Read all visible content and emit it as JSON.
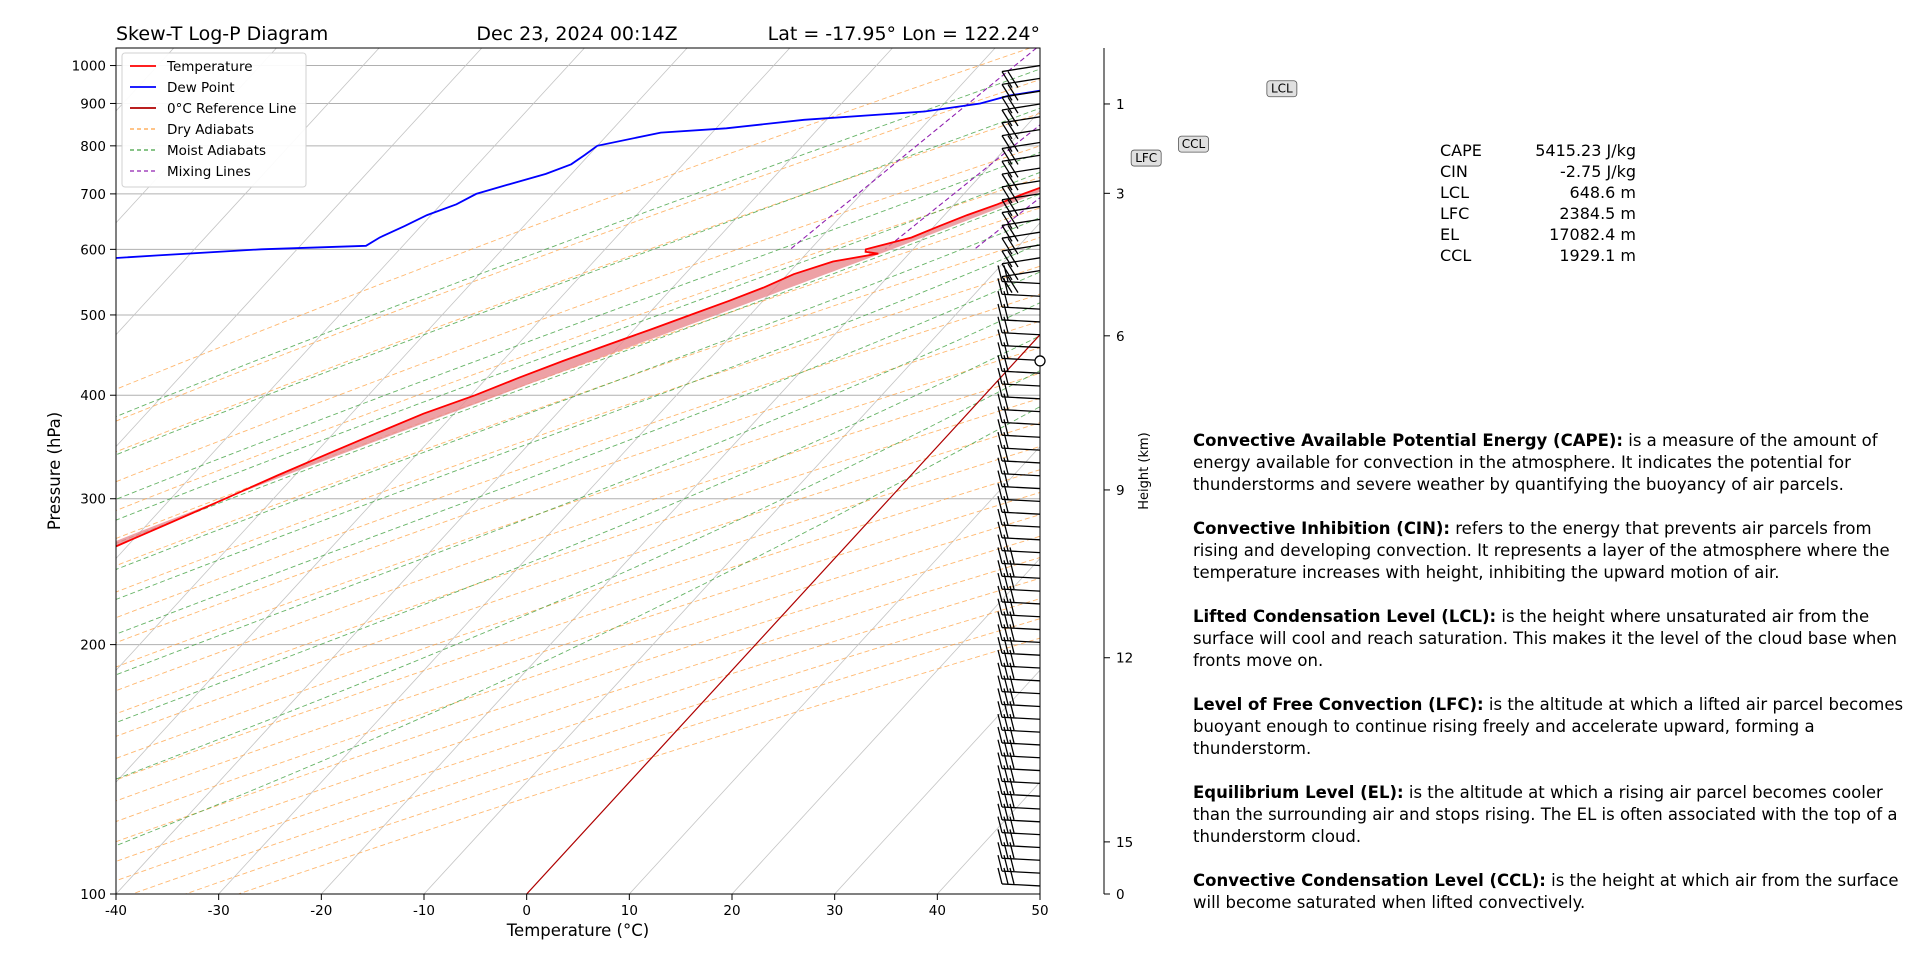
{
  "header": {
    "title": "Skew-T Log-P Diagram",
    "time": "Dec 23, 2024 00:14Z",
    "location": "Lat = -17.95° Lon = 122.24°"
  },
  "chart_data": {
    "type": "skewt",
    "xlabel": "Temperature (°C)",
    "ylabel": "Pressure (hPa)",
    "y2label": "Height (km)",
    "xlim": [
      -40,
      50
    ],
    "ylim_hpa": [
      1050,
      100
    ],
    "x_ticks": [
      -40,
      -30,
      -20,
      -10,
      0,
      10,
      20,
      30,
      40,
      50
    ],
    "y_ticks": [
      1000,
      900,
      800,
      700,
      600,
      500,
      400,
      300,
      200,
      100
    ],
    "height_ticks_km": [
      0,
      1,
      3,
      6,
      9,
      12,
      15
    ],
    "y_scale": "log",
    "grid": true,
    "legend_position": "top-left",
    "legend": [
      {
        "label": "Temperature",
        "color": "#ff0000",
        "style": "solid"
      },
      {
        "label": "Dew Point",
        "color": "#0000ff",
        "style": "solid"
      },
      {
        "label": "0°C Reference Line",
        "color": "#b00000",
        "style": "solid"
      },
      {
        "label": "Dry Adiabats",
        "color": "#ffa040",
        "style": "dashed"
      },
      {
        "label": "Moist Adiabats",
        "color": "#40a040",
        "style": "dashed"
      },
      {
        "label": "Mixing Lines",
        "color": "#9020b0",
        "style": "dashed"
      }
    ],
    "series": [
      {
        "name": "Temperature",
        "color": "#ff0000",
        "points": [
          [
            1000,
            -10.8
          ],
          [
            990,
            -8.6
          ],
          [
            975,
            -7.4
          ],
          [
            960,
            -7.0
          ],
          [
            945,
            -6.0
          ],
          [
            930,
            -4.0
          ],
          [
            915,
            -1.5
          ],
          [
            900,
            0.8
          ],
          [
            880,
            2.1
          ],
          [
            860,
            2.8
          ],
          [
            840,
            1.6
          ],
          [
            820,
            -1.5
          ],
          [
            800,
            -4.3
          ],
          [
            780,
            -6.3
          ],
          [
            765,
            -7.8
          ],
          [
            740,
            -10.4
          ],
          [
            720,
            -12.4
          ],
          [
            700,
            -14.2
          ],
          [
            680,
            -15.8
          ],
          [
            660,
            -17.8
          ],
          [
            640,
            -19.5
          ],
          [
            620,
            -21.2
          ],
          [
            600,
            -24.6
          ],
          [
            596,
            -24.4
          ],
          [
            593,
            -23.0
          ],
          [
            580,
            -26.7
          ],
          [
            560,
            -29.4
          ],
          [
            540,
            -31.1
          ],
          [
            520,
            -33.3
          ],
          [
            500,
            -35.8
          ],
          [
            480,
            -38.4
          ],
          [
            460,
            -41.2
          ],
          [
            440,
            -44.1
          ],
          [
            420,
            -46.9
          ],
          [
            400,
            -49.6
          ],
          [
            380,
            -53.0
          ],
          [
            360,
            -55.8
          ],
          [
            340,
            -58.7
          ],
          [
            320,
            -61.7
          ],
          [
            300,
            -64.7
          ],
          [
            280,
            -68.0
          ],
          [
            260,
            -71.6
          ],
          [
            240,
            -74.6
          ],
          [
            220,
            -78.3
          ],
          [
            200,
            -82.3
          ],
          [
            180,
            -86.0
          ],
          [
            160,
            -89.6
          ],
          [
            140,
            -93.2
          ],
          [
            120,
            -96.2
          ],
          [
            110,
            -97.4
          ],
          [
            100,
            -98.5
          ]
        ]
      },
      {
        "name": "Dew Point",
        "color": "#0000ff",
        "points": [
          [
            1000,
            -1.4
          ],
          [
            980,
            -1.6
          ],
          [
            965,
            -4.4
          ],
          [
            955,
            -13.5
          ],
          [
            945,
            -20.0
          ],
          [
            935,
            -21.3
          ],
          [
            920,
            -24.4
          ],
          [
            900,
            -26.5
          ],
          [
            880,
            -31.2
          ],
          [
            860,
            -42.2
          ],
          [
            840,
            -49.0
          ],
          [
            830,
            -55.0
          ],
          [
            800,
            -60.0
          ],
          [
            780,
            -60.4
          ],
          [
            760,
            -60.9
          ],
          [
            740,
            -62.5
          ],
          [
            720,
            -65.0
          ],
          [
            700,
            -67.5
          ],
          [
            680,
            -68.5
          ],
          [
            660,
            -70.4
          ],
          [
            640,
            -71.6
          ],
          [
            620,
            -73.0
          ],
          [
            606,
            -73.6
          ],
          [
            600,
            -83.5
          ],
          [
            590,
            -93.0
          ],
          [
            580,
            -102.0
          ],
          [
            560,
            -109.0
          ],
          [
            540,
            -110.5
          ],
          [
            520,
            -114.0
          ],
          [
            505,
            -119.0
          ],
          [
            490,
            -121.0
          ],
          [
            470,
            -123.3
          ],
          [
            455,
            -120.0
          ],
          [
            440,
            -125.0
          ],
          [
            425,
            -130.0
          ],
          [
            415,
            -135.0
          ],
          [
            405,
            -136.0
          ],
          [
            400,
            -133.0
          ],
          [
            380,
            -132.0
          ],
          [
            360,
            -131.0
          ],
          [
            340,
            -130.0
          ],
          [
            320,
            -127.0
          ],
          [
            310,
            -124.0
          ],
          [
            300,
            -122.0
          ],
          [
            290,
            -120.0
          ],
          [
            280,
            -117.0
          ],
          [
            270,
            -115.0
          ],
          [
            260,
            -110.0
          ],
          [
            250,
            -112.0
          ],
          [
            240,
            -110.0
          ],
          [
            230,
            -112.0
          ],
          [
            220,
            -113.0
          ],
          [
            210,
            -120.0
          ],
          [
            200,
            -128.0
          ],
          [
            190,
            -130.0
          ],
          [
            180,
            -131.0
          ],
          [
            170,
            -132.0
          ],
          [
            160,
            -133.5
          ],
          [
            150,
            -135.0
          ],
          [
            140,
            -135.5
          ],
          [
            130,
            -136.0
          ],
          [
            120,
            -136.6
          ],
          [
            110,
            -137.3
          ],
          [
            100,
            -137.0
          ]
        ]
      },
      {
        "name": "0°C Reference Line",
        "color": "#b00000",
        "points": [
          [
            1050,
            0
          ],
          [
            100,
            0
          ]
        ]
      }
    ],
    "cape_area_color": "#e88a8f",
    "cin_area_color": "#8fb6d8",
    "levels": [
      {
        "name": "LCL",
        "pressure": 935,
        "temperature": 3.9,
        "color": "#ff00ff"
      },
      {
        "name": "LFC",
        "pressure": 769,
        "temperature": -7.9,
        "color": "#00ff00"
      },
      {
        "name": "CCL",
        "pressure": 806,
        "temperature": -4.8,
        "color": "#ffa500"
      }
    ],
    "wind_barbs": "right column, from surface to 100 hPa"
  },
  "stats": [
    {
      "label": "CAPE",
      "value": "5415.23 J/kg"
    },
    {
      "label": "CIN",
      "value": "-2.75 J/kg"
    },
    {
      "label": "LCL",
      "value": "648.6 m"
    },
    {
      "label": "LFC",
      "value": "2384.5 m"
    },
    {
      "label": "EL",
      "value": "17082.4 m"
    },
    {
      "label": "CCL",
      "value": "1929.1 m"
    }
  ],
  "definitions": [
    {
      "term": "Convective Available Potential Energy (CAPE):",
      "text": " is a measure of the amount of energy available for convection in the atmosphere. It indicates the potential for thunderstorms and severe weather by quantifying the buoyancy of air parcels."
    },
    {
      "term": "Convective Inhibition (CIN):",
      "text": " refers to the energy that prevents air parcels from rising and developing convection. It represents a layer of the atmosphere where the temperature increases with height, inhibiting the upward motion of air."
    },
    {
      "term": "Lifted Condensation Level (LCL):",
      "text": " is the height where unsaturated air from the surface will cool and reach saturation. This makes it the level of the cloud base when fronts move on."
    },
    {
      "term": "Level of Free Convection (LFC):",
      "text": " is the altitude at which a lifted air parcel becomes buoyant enough to continue rising freely and accelerate upward, forming a thunderstorm."
    },
    {
      "term": "Equilibrium Level (EL):",
      "text": " is the altitude at which a rising air parcel becomes cooler than the surrounding air and stops rising. The EL is often associated with the top of a thunderstorm cloud."
    },
    {
      "term": "Convective Condensation Level (CCL):",
      "text": " is the height at which air from the surface will become saturated when lifted convectively."
    }
  ]
}
